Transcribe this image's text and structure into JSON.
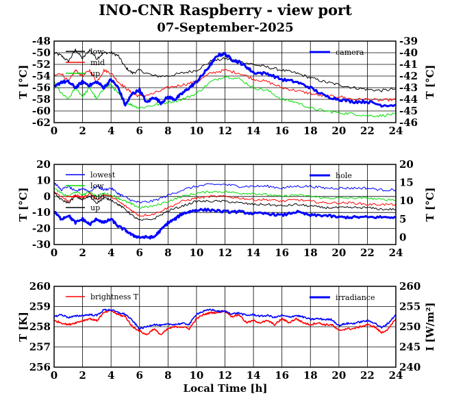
{
  "title": "INO-CNR Raspberry - view port",
  "subtitle": "07-September-2025",
  "xlabel": "Local Time [h]",
  "colors": {
    "black": "#000000",
    "red": "#ff0000",
    "green": "#00dd00",
    "blue": "#0000ff"
  },
  "chart_data": [
    {
      "type": "line",
      "xlim": [
        0,
        24
      ],
      "ylim": [
        -62,
        -48
      ],
      "ylabel": "T [°C]",
      "y2lim": [
        -46,
        -39
      ],
      "y2label": "T [°C]",
      "xticks": [
        "0",
        "2",
        "4",
        "6",
        "8",
        "10",
        "12",
        "14",
        "16",
        "18",
        "20",
        "22",
        "24"
      ],
      "yticks": [
        "-62",
        "-60",
        "-58",
        "-56",
        "-54",
        "-52",
        "-50",
        "-48"
      ],
      "y2ticks": [
        "-46",
        "-45",
        "-44",
        "-43",
        "-42",
        "-41",
        "-40",
        "-39"
      ],
      "grid": true,
      "legend_left": [
        "low",
        "mid",
        "up"
      ],
      "legend_right": [
        "camera"
      ],
      "series": [
        {
          "name": "low",
          "axis": "left",
          "color": "#000000",
          "x": [
            0,
            0.5,
            1,
            1.5,
            2,
            2.5,
            3,
            3.5,
            4,
            4.5,
            5,
            5.5,
            6,
            7,
            8,
            9,
            10,
            11,
            12,
            13,
            14,
            15,
            16,
            17,
            18,
            19,
            20,
            21,
            22,
            23,
            24
          ],
          "y": [
            -50,
            -50.5,
            -51.5,
            -49.5,
            -51,
            -49.5,
            -51,
            -50,
            -50,
            -50.5,
            -52.5,
            -53.5,
            -53,
            -54,
            -54,
            -53.5,
            -53,
            -51.5,
            -51,
            -51.5,
            -52,
            -52.5,
            -53,
            -53.5,
            -54.3,
            -55,
            -55.5,
            -56,
            -56.3,
            -56.5,
            -56.2
          ]
        },
        {
          "name": "mid",
          "axis": "left",
          "color": "#ff0000",
          "x": [
            0,
            0.5,
            1,
            1.5,
            2,
            2.5,
            3,
            3.5,
            4,
            4.5,
            5,
            5.5,
            6,
            7,
            8,
            9,
            10,
            11,
            12,
            13,
            14,
            15,
            16,
            17,
            18,
            19,
            20,
            21,
            22,
            23,
            24
          ],
          "y": [
            -54,
            -53.5,
            -55,
            -53,
            -54,
            -53,
            -55,
            -53,
            -53.5,
            -55,
            -56,
            -57,
            -57.5,
            -57,
            -56,
            -55.5,
            -55,
            -53.5,
            -53,
            -53.5,
            -54.5,
            -55,
            -56,
            -56.5,
            -57,
            -57.5,
            -57.5,
            -58,
            -58,
            -58.2,
            -58
          ]
        },
        {
          "name": "up",
          "axis": "left",
          "color": "#00dd00",
          "x": [
            0,
            0.5,
            1,
            1.5,
            2,
            2.5,
            3,
            3.5,
            4,
            4.5,
            5,
            5.5,
            6,
            7,
            8,
            9,
            10,
            11,
            12,
            13,
            14,
            15,
            16,
            17,
            18,
            19,
            20,
            21,
            22,
            23,
            24
          ],
          "y": [
            -55,
            -57,
            -58,
            -56,
            -57.5,
            -56,
            -58,
            -56,
            -55.5,
            -57,
            -58.5,
            -59,
            -59.5,
            -59,
            -58.5,
            -58,
            -57,
            -55,
            -54,
            -54.5,
            -56,
            -56.5,
            -58,
            -58.5,
            -59.5,
            -60,
            -60.3,
            -60.5,
            -60.8,
            -60.8,
            -60.5
          ]
        },
        {
          "name": "camera",
          "axis": "right",
          "color": "#0000ff",
          "x": [
            0,
            0.5,
            1,
            1.5,
            2,
            2.5,
            3,
            3.5,
            4,
            4.5,
            5,
            5.5,
            6,
            6.5,
            7,
            7.5,
            8,
            8.5,
            9,
            9.5,
            10,
            10.5,
            11,
            11.5,
            12,
            12.5,
            13,
            13.5,
            14,
            15,
            16,
            17,
            18,
            19,
            20,
            21,
            22,
            23,
            24
          ],
          "y": [
            -43,
            -42.5,
            -42.5,
            -43,
            -42.5,
            -42.8,
            -42.5,
            -43,
            -42.3,
            -43,
            -44.5,
            -43.5,
            -43.2,
            -44.3,
            -43.8,
            -44.3,
            -43.8,
            -44,
            -43.5,
            -43,
            -42.5,
            -41.8,
            -41,
            -40.2,
            -40.1,
            -40.6,
            -40.8,
            -41.2,
            -41.7,
            -41.8,
            -42.3,
            -42.5,
            -43,
            -43.7,
            -44,
            -44.2,
            -44.2,
            -44.5,
            -44.5
          ]
        }
      ]
    },
    {
      "type": "line",
      "xlim": [
        0,
        24
      ],
      "ylim": [
        -30,
        20
      ],
      "ylabel": "T [°C]",
      "y2lim": [
        -2,
        20
      ],
      "y2label": "T [°C]",
      "xticks": [
        "0",
        "2",
        "4",
        "6",
        "8",
        "10",
        "12",
        "14",
        "16",
        "18",
        "20",
        "22",
        "24"
      ],
      "yticks": [
        "-30",
        "-20",
        "-10",
        "0",
        "10",
        "20"
      ],
      "y2ticks": [
        "0",
        "5",
        "10",
        "15",
        "20"
      ],
      "grid": true,
      "legend_left": [
        "lowest",
        "low",
        "mid",
        "up"
      ],
      "legend_right": [
        "hole"
      ],
      "series": [
        {
          "name": "lowest",
          "axis": "right",
          "color": "#0000ff",
          "x": [
            0,
            0.5,
            1,
            1.5,
            2,
            2.5,
            3,
            3.5,
            4,
            4.5,
            5,
            5.5,
            6,
            7,
            8,
            9,
            10,
            11,
            12,
            13,
            14,
            15,
            16,
            17,
            18,
            19,
            20,
            21,
            22,
            23,
            24
          ],
          "y": [
            15,
            13,
            14,
            12.5,
            13.5,
            12.5,
            14,
            13,
            13.5,
            12,
            11,
            10,
            9.5,
            10,
            11.5,
            13,
            14,
            14.5,
            14.5,
            14,
            14,
            14,
            13.5,
            14,
            14,
            13.5,
            13.5,
            13.5,
            13.5,
            13,
            13
          ]
        },
        {
          "name": "low",
          "axis": "left",
          "color": "#00dd00",
          "x": [
            0,
            0.5,
            1,
            1.5,
            2,
            2.5,
            3,
            3.5,
            4,
            4.5,
            5,
            5.5,
            6,
            7,
            8,
            9,
            10,
            11,
            12,
            13,
            14,
            15,
            16,
            17,
            18,
            19,
            20,
            21,
            22,
            23,
            24
          ],
          "y": [
            5,
            2,
            0,
            3,
            1,
            3,
            0,
            2,
            1,
            -1,
            -3,
            -5,
            -7,
            -6,
            -3,
            0,
            2,
            3,
            3,
            2,
            2,
            1,
            0,
            1,
            0,
            -1,
            -1,
            -1,
            -1,
            -2,
            -2
          ]
        },
        {
          "name": "mid",
          "axis": "left",
          "color": "#ff0000",
          "x": [
            0,
            0.5,
            1,
            1.5,
            2,
            2.5,
            3,
            3.5,
            4,
            4.5,
            5,
            5.5,
            6,
            7,
            8,
            9,
            10,
            11,
            12,
            13,
            14,
            15,
            16,
            17,
            18,
            19,
            20,
            21,
            22,
            23,
            24
          ],
          "y": [
            3,
            0,
            -3,
            1,
            -1,
            2,
            -2,
            1,
            0,
            -3,
            -6,
            -9,
            -12,
            -11,
            -7,
            -3,
            -1,
            0,
            0,
            -1,
            -2,
            -2,
            -3,
            -2,
            -3,
            -4,
            -4,
            -4,
            -5,
            -5,
            -5
          ]
        },
        {
          "name": "up",
          "axis": "left",
          "color": "#000000",
          "x": [
            0,
            0.5,
            1,
            1.5,
            2,
            2.5,
            3,
            3.5,
            4,
            4.5,
            5,
            5.5,
            6,
            7,
            8,
            9,
            10,
            11,
            12,
            13,
            14,
            15,
            16,
            17,
            18,
            19,
            20,
            21,
            22,
            23,
            24
          ],
          "y": [
            2,
            -2,
            -4,
            0,
            -2,
            0,
            -4,
            -1,
            -2,
            -5,
            -8,
            -12,
            -15,
            -14,
            -9,
            -6,
            -3,
            -3,
            -3,
            -4,
            -5,
            -5,
            -6,
            -5,
            -6,
            -7,
            -7,
            -7,
            -7,
            -8,
            -8
          ]
        },
        {
          "name": "hole",
          "axis": "right",
          "color": "#0000ff",
          "x": [
            0,
            0.5,
            1,
            1.5,
            2,
            2.5,
            3,
            3.5,
            4,
            4.5,
            5,
            5.5,
            6,
            6.5,
            7,
            7.5,
            8,
            8.5,
            9,
            9.5,
            10,
            11,
            12,
            13,
            14,
            15,
            16,
            17,
            18,
            19,
            20,
            21,
            22,
            23,
            24
          ],
          "y": [
            7,
            5,
            6,
            4,
            5,
            3.5,
            5,
            4,
            5,
            3,
            2,
            0.5,
            0,
            0,
            0,
            2,
            4,
            5,
            6.5,
            7,
            7.5,
            7.5,
            7,
            7,
            6.5,
            6.5,
            6,
            7,
            6,
            6,
            5.5,
            5.5,
            5.5,
            5.5,
            5.5
          ]
        }
      ]
    },
    {
      "type": "line",
      "xlim": [
        0,
        24
      ],
      "ylim": [
        256,
        260
      ],
      "ylabel": "T [K]",
      "y2lim": [
        240,
        260
      ],
      "y2label": "I [W/m²]",
      "xticks": [
        "0",
        "2",
        "4",
        "6",
        "8",
        "10",
        "12",
        "14",
        "16",
        "18",
        "20",
        "22",
        "24"
      ],
      "yticks": [
        "256",
        "257",
        "258",
        "259",
        "260"
      ],
      "y2ticks": [
        "240",
        "245",
        "250",
        "255",
        "260"
      ],
      "xlabel": "Local Time [h]",
      "grid": true,
      "legend_left": [
        "brightness T"
      ],
      "legend_right": [
        "irradiance"
      ],
      "series": [
        {
          "name": "brightness T",
          "axis": "left",
          "color": "#ff0000",
          "x": [
            0,
            0.5,
            1,
            1.5,
            2,
            2.5,
            3,
            3.5,
            4,
            4.5,
            5,
            5.5,
            6,
            6.5,
            7,
            7.5,
            8,
            8.5,
            9,
            9.5,
            10,
            10.5,
            11,
            11.5,
            12,
            12.5,
            13,
            13.5,
            14,
            14.5,
            15,
            15.5,
            16,
            16.5,
            17,
            17.5,
            18,
            18.5,
            19,
            19.5,
            20,
            20.5,
            21,
            21.5,
            22,
            22.5,
            23,
            23.5,
            24
          ],
          "y": [
            258.3,
            258.2,
            258.1,
            258.2,
            258.3,
            258.4,
            258.3,
            258.7,
            258.8,
            258.6,
            258.5,
            258.0,
            257.8,
            257.6,
            257.9,
            257.6,
            257.9,
            258.0,
            258.0,
            257.9,
            258.4,
            258.6,
            258.7,
            258.7,
            258.8,
            258.5,
            258.6,
            258.2,
            258.3,
            258.2,
            258.3,
            258.1,
            258.4,
            258.2,
            258.4,
            258.2,
            258.1,
            258.2,
            258.1,
            258.1,
            257.8,
            257.9,
            257.9,
            258.0,
            258.1,
            258.0,
            257.7,
            257.9,
            258.4
          ]
        },
        {
          "name": "irradiance",
          "axis": "right",
          "color": "#0000ff",
          "x": [
            0,
            0.5,
            1,
            1.5,
            2,
            2.5,
            3,
            3.5,
            4,
            4.5,
            5,
            5.5,
            6,
            6.5,
            7,
            7.5,
            8,
            8.5,
            9,
            9.5,
            10,
            10.5,
            11,
            11.5,
            12,
            12.5,
            13,
            13.5,
            14,
            14.5,
            15,
            15.5,
            16,
            16.5,
            17,
            17.5,
            18,
            18.5,
            19,
            19.5,
            20,
            20.5,
            21,
            21.5,
            22,
            22.5,
            23,
            23.5,
            24
          ],
          "y": [
            252.5,
            253.0,
            252.3,
            252.6,
            252.8,
            253.0,
            252.8,
            254.2,
            254.2,
            253.5,
            253.1,
            251.5,
            249.5,
            250.0,
            250.6,
            250.3,
            250.6,
            250.6,
            250.8,
            250.6,
            253.2,
            253.8,
            254.3,
            253.8,
            253.8,
            253.2,
            253.4,
            252.8,
            253.0,
            252.6,
            252.8,
            252.3,
            252.8,
            252.4,
            252.8,
            252.4,
            251.8,
            252.0,
            251.8,
            251.8,
            250.3,
            250.8,
            250.8,
            251.2,
            251.5,
            251.0,
            249.7,
            251.0,
            253.0
          ]
        }
      ]
    }
  ]
}
